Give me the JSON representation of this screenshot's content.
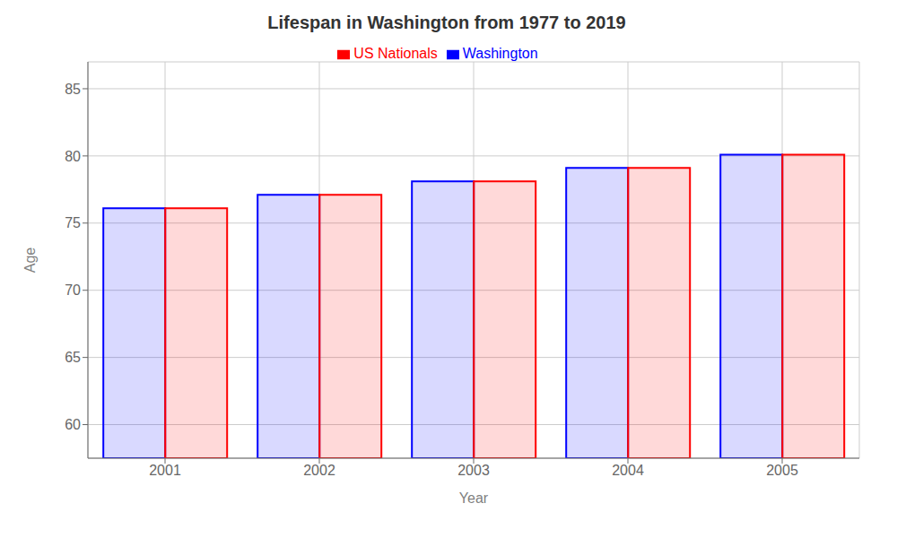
{
  "chart_data": {
    "type": "bar",
    "title": "Lifespan in Washington from 1977 to 2019",
    "x_label": "Year",
    "y_label": "Age",
    "categories": [
      "2001",
      "2002",
      "2003",
      "2004",
      "2005"
    ],
    "series": [
      {
        "name": "Washington",
        "color": "#0000ff",
        "values": [
          76.1,
          77.1,
          78.1,
          79.1,
          80.1
        ]
      },
      {
        "name": "US Nationals",
        "color": "#ff0000",
        "values": [
          76.1,
          77.1,
          78.1,
          79.1,
          80.1
        ]
      }
    ],
    "ylim": [
      57.5,
      87
    ],
    "yticks": [
      60,
      65,
      70,
      75,
      80,
      85
    ],
    "grid": true,
    "legend": "top"
  }
}
